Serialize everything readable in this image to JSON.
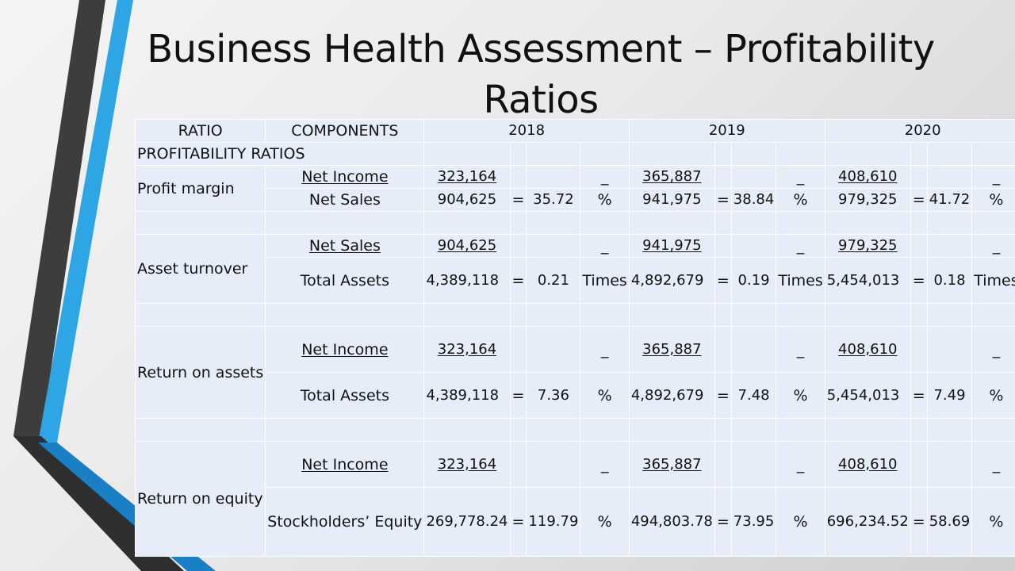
{
  "slide": {
    "title": "Business Health Assessment – Profitability Ratios"
  },
  "table": {
    "header": {
      "ratio": "RATIO",
      "components": "COMPONENTS",
      "years": [
        "2018",
        "2019",
        "2020"
      ]
    },
    "section_label": "PROFITABILITY RATIOS",
    "eq": "=",
    "dash": "_",
    "rows": [
      {
        "label": "Profit margin",
        "numerator": "Net Income",
        "denominator": "Net Sales",
        "unit": "%",
        "years": [
          {
            "num": "323,164",
            "den": "904,625",
            "value": "35.72"
          },
          {
            "num": "365,887",
            "den": "941,975",
            "value": "38.84"
          },
          {
            "num": "408,610",
            "den": "979,325",
            "value": "41.72"
          }
        ]
      },
      {
        "label": "Asset turnover",
        "numerator": "Net Sales",
        "denominator": "Total Assets",
        "unit": "Times",
        "years": [
          {
            "num": "904,625",
            "den": "4,389,118",
            "value": "0.21"
          },
          {
            "num": "941,975",
            "den": "4,892,679",
            "value": "0.19"
          },
          {
            "num": "979,325",
            "den": "5,454,013",
            "value": "0.18"
          }
        ]
      },
      {
        "label": "Return on assets",
        "numerator": "Net Income",
        "denominator": "Total Assets",
        "unit": "%",
        "years": [
          {
            "num": "323,164",
            "den": "4,389,118",
            "value": "7.36"
          },
          {
            "num": "365,887",
            "den": "4,892,679",
            "value": "7.48"
          },
          {
            "num": "408,610",
            "den": "5,454,013",
            "value": "7.49"
          }
        ]
      },
      {
        "label": "Return on equity",
        "numerator": "Net Income",
        "denominator": "Stockholders’ Equity",
        "unit": "%",
        "years": [
          {
            "num": "323,164",
            "den": "269,778.24",
            "value": "119.79"
          },
          {
            "num": "365,887",
            "den": "494,803.78",
            "value": "73.95"
          },
          {
            "num": "408,610",
            "den": "696,234.52",
            "value": "58.69"
          }
        ]
      }
    ]
  },
  "colors": {
    "table_fill": "#e6edf8",
    "accent_blue": "#2ea6e6",
    "dark_stripe": "#3c3c3c"
  }
}
